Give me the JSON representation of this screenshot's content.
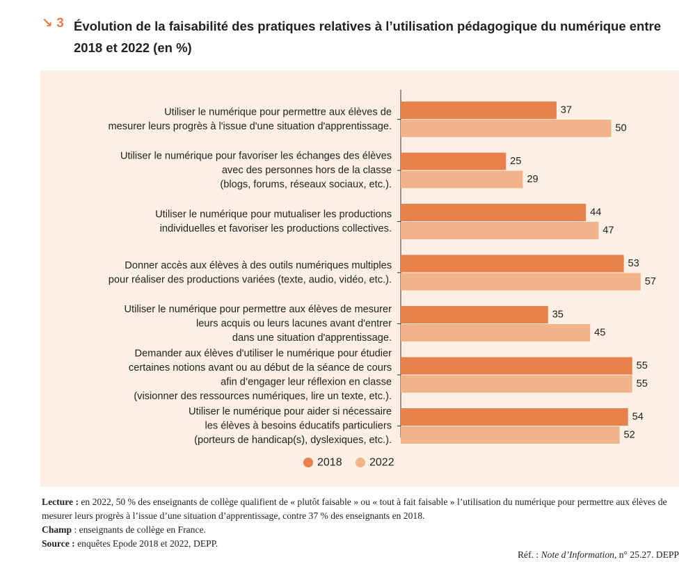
{
  "figure": {
    "arrow_icon": "arrow-down-right-icon",
    "arrow_glyph": "↘",
    "number": "3"
  },
  "chart_data": {
    "type": "bar",
    "orientation": "horizontal",
    "title": "Évolution de la faisabilité des pratiques relatives à l’utilisation pédagogique du numérique entre 2018 et 2022 (en %)",
    "xlabel": "",
    "ylabel": "",
    "xlim": [
      0,
      60
    ],
    "grid": false,
    "legend_position": "bottom-center",
    "categories": [
      [
        "Utiliser le numérique pour permettre aux élèves de",
        "mesurer leurs progrès à l'issue d'une situation d'apprentissage."
      ],
      [
        "Utiliser le numérique pour favoriser les échanges des élèves",
        "avec des personnes hors de la classe",
        "(blogs, forums, réseaux sociaux, etc.)."
      ],
      [
        "Utiliser le numérique pour mutualiser les productions",
        "individuelles et favoriser les productions collectives."
      ],
      [
        "Donner accès aux élèves à des outils numériques multiples",
        "pour réaliser des productions variées (texte, audio, vidéo, etc.)."
      ],
      [
        "Utiliser le numérique pour permettre aux élèves de mesurer",
        "leurs acquis ou leurs lacunes avant d'entrer",
        "dans une situation d'apprentissage."
      ],
      [
        "Demander aux élèves d'utiliser le numérique pour étudier",
        "certaines notions avant ou au début de la séance de cours",
        "afin d’engager leur réflexion en classe",
        "(visionner des ressources numériques, lire un texte, etc.)."
      ],
      [
        "Utiliser le numérique pour aider si nécessaire",
        "les élèves à besoins éducatifs particuliers",
        "(porteurs de handicap(s), dyslexiques, etc.)."
      ]
    ],
    "series": [
      {
        "name": "2018",
        "color": "#e8804b",
        "values": [
          37,
          25,
          44,
          53,
          35,
          55,
          54
        ]
      },
      {
        "name": "2022",
        "color": "#f2b38b",
        "values": [
          50,
          29,
          47,
          57,
          45,
          55,
          52
        ]
      }
    ]
  },
  "notes": {
    "lecture_label": "Lecture :",
    "lecture_text": " en 2022, 50 % des enseignants de collège qualifient de « plutôt faisable » ou « tout à fait faisable » l’utilisation du numérique pour permettre aux élèves de mesurer leurs progrès à l’issue d’une situation d’apprentissage, contre 37 % des enseignants en 2018.",
    "champ_label": "Champ",
    "champ_text": " : enseignants de collège en France.",
    "source_label": "Source :",
    "source_text": " enquêtes Epode 2018 et 2022, DEPP."
  },
  "reference": {
    "prefix": "Réf. : ",
    "publication": "Note d’Information",
    "suffix": ", n° 25.27. DEPP"
  }
}
